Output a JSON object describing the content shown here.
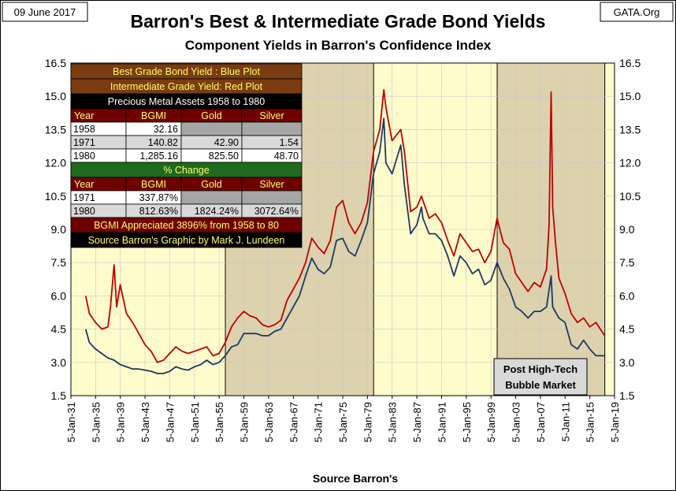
{
  "header": {
    "date": "09 June 2017",
    "brand": "GATA.Org",
    "title": "Barron's Best & Intermediate Grade Bond Yields",
    "subtitle": "Component Yields in Barron's Confidence Index",
    "source": "Source Barron's"
  },
  "colors": {
    "plot_bg": "#fffccc",
    "shade": "#ddd2ae",
    "best_grade": "#1f3864",
    "intermediate_grade": "#c00000",
    "table_brown": "#7a3c10",
    "table_darkred": "#6e0000",
    "table_green": "#1e6a1e",
    "table_black": "#000000",
    "table_gray": "#d9d9d9"
  },
  "table": {
    "legend_rows": [
      "Best Grade Bond Yield   : Blue Plot",
      "Intermediate Grade Yield: Red Plot"
    ],
    "title": "Precious Metal Assets 1958 to 1980",
    "headers": [
      "Year",
      "BGMI",
      "Gold",
      "Silver"
    ],
    "rows": [
      [
        "1958",
        "32.16",
        "",
        ""
      ],
      [
        "1971",
        "140.82",
        "42.90",
        "1.54"
      ],
      [
        "1980",
        "1,285.16",
        "825.50",
        "48.70"
      ]
    ],
    "pct_title": "% Change",
    "pct_headers": [
      "Year",
      "BGMI",
      "Gold",
      "Silver"
    ],
    "pct_rows": [
      [
        "1971",
        "337.87%",
        "",
        ""
      ],
      [
        "1980",
        "812.63%",
        "1824.24%",
        "3072.64%"
      ]
    ],
    "footer1": "BGMI Appreciated 3896% from 1958 to 80",
    "footer2": "Source Barron's  Graphic by Mark J. Lundeen"
  },
  "annotation": [
    "Post High-Tech",
    "Bubble Market"
  ],
  "chart_data": {
    "type": "line",
    "xlim": [
      "1931-01-05",
      "2019-01-05"
    ],
    "ylim": [
      1.5,
      16.5
    ],
    "y_ticks": [
      "1.5",
      "3.0",
      "4.5",
      "6.0",
      "7.5",
      "9.0",
      "10.5",
      "12.0",
      "13.5",
      "15.0",
      "16.5"
    ],
    "x_ticks": [
      "5-Jan-31",
      "5-Jan-35",
      "5-Jan-39",
      "5-Jan-43",
      "5-Jan-47",
      "5-Jan-51",
      "5-Jan-55",
      "5-Jan-59",
      "5-Jan-63",
      "5-Jan-67",
      "5-Jan-71",
      "5-Jan-75",
      "5-Jan-79",
      "5-Jan-83",
      "5-Jan-87",
      "5-Jan-91",
      "5-Jan-95",
      "5-Jan-99",
      "5-Jan-03",
      "5-Jan-07",
      "5-Jan-11",
      "5-Jan-15",
      "5-Jan-19"
    ],
    "shaded_periods": [
      [
        "1956-01-05",
        "1980-01-05"
      ],
      [
        "2000-01-05",
        "2017-06-09"
      ]
    ],
    "series": [
      {
        "name": "Best Grade Bond Yield",
        "x": [
          "1933-06-01",
          "1934-01-01",
          "1935-01-01",
          "1936-01-01",
          "1937-01-01",
          "1938-01-01",
          "1939-01-01",
          "1940-01-01",
          "1941-01-01",
          "1942-01-01",
          "1943-01-01",
          "1944-01-01",
          "1945-01-01",
          "1946-01-01",
          "1947-01-01",
          "1948-01-01",
          "1949-01-01",
          "1950-01-01",
          "1951-01-01",
          "1952-01-01",
          "1953-01-01",
          "1954-01-01",
          "1955-01-01",
          "1956-01-01",
          "1957-01-01",
          "1958-01-01",
          "1959-01-01",
          "1960-01-01",
          "1961-01-01",
          "1962-01-01",
          "1963-01-01",
          "1964-01-01",
          "1965-01-01",
          "1966-01-01",
          "1967-01-01",
          "1968-01-01",
          "1969-01-01",
          "1970-01-01",
          "1971-01-01",
          "1972-01-01",
          "1973-01-01",
          "1974-01-01",
          "1975-01-01",
          "1976-01-01",
          "1977-01-01",
          "1978-01-01",
          "1979-01-01",
          "1980-01-01",
          "1981-01-01",
          "1981-09-01",
          "1982-01-01",
          "1983-01-01",
          "1984-06-01",
          "1985-01-01",
          "1986-01-01",
          "1987-01-01",
          "1987-10-01",
          "1988-01-01",
          "1989-01-01",
          "1990-01-01",
          "1991-01-01",
          "1992-01-01",
          "1993-01-01",
          "1994-01-01",
          "1995-01-01",
          "1996-01-01",
          "1997-01-01",
          "1998-01-01",
          "1999-01-01",
          "2000-01-01",
          "2001-01-01",
          "2002-01-01",
          "2003-01-01",
          "2004-01-01",
          "2005-01-01",
          "2006-01-01",
          "2007-01-01",
          "2008-01-01",
          "2008-10-01",
          "2009-01-01",
          "2010-01-01",
          "2011-01-01",
          "2012-01-01",
          "2013-01-01",
          "2014-01-01",
          "2015-01-01",
          "2016-01-01",
          "2017-06-01"
        ],
        "y": [
          4.5,
          3.9,
          3.6,
          3.4,
          3.2,
          3.1,
          2.9,
          2.8,
          2.7,
          2.7,
          2.65,
          2.6,
          2.5,
          2.5,
          2.6,
          2.8,
          2.7,
          2.65,
          2.8,
          2.9,
          3.1,
          2.9,
          3.0,
          3.3,
          3.7,
          3.8,
          4.3,
          4.3,
          4.3,
          4.2,
          4.2,
          4.4,
          4.5,
          5.0,
          5.5,
          6.0,
          6.9,
          7.7,
          7.2,
          7.0,
          7.3,
          8.5,
          8.6,
          8.0,
          7.8,
          8.5,
          9.3,
          11.5,
          12.5,
          14.0,
          12.0,
          11.5,
          12.8,
          11.0,
          8.8,
          9.2,
          10.0,
          9.5,
          8.8,
          8.8,
          8.5,
          7.8,
          6.9,
          7.8,
          7.5,
          7.0,
          7.2,
          6.5,
          6.7,
          7.5,
          6.8,
          6.3,
          5.5,
          5.3,
          5.0,
          5.3,
          5.3,
          5.5,
          6.9,
          5.5,
          5.0,
          4.8,
          3.8,
          3.6,
          4.0,
          3.6,
          3.3,
          3.3
        ]
      },
      {
        "name": "Intermediate Grade Yield",
        "x": [
          "1933-06-01",
          "1934-01-01",
          "1935-01-01",
          "1936-01-01",
          "1937-01-01",
          "1937-06-01",
          "1938-01-01",
          "1938-06-01",
          "1939-01-01",
          "1940-01-01",
          "1941-01-01",
          "1942-01-01",
          "1943-01-01",
          "1944-01-01",
          "1945-01-01",
          "1946-01-01",
          "1947-01-01",
          "1948-01-01",
          "1949-01-01",
          "1950-01-01",
          "1951-01-01",
          "1952-01-01",
          "1953-01-01",
          "1954-01-01",
          "1955-01-01",
          "1956-01-01",
          "1957-01-01",
          "1958-01-01",
          "1959-01-01",
          "1960-01-01",
          "1961-01-01",
          "1962-01-01",
          "1963-01-01",
          "1964-01-01",
          "1965-01-01",
          "1966-01-01",
          "1967-01-01",
          "1968-01-01",
          "1969-01-01",
          "1970-01-01",
          "1971-01-01",
          "1972-01-01",
          "1973-01-01",
          "1974-01-01",
          "1975-01-01",
          "1976-01-01",
          "1977-01-01",
          "1978-01-01",
          "1979-01-01",
          "1980-01-01",
          "1981-01-01",
          "1981-09-01",
          "1982-01-01",
          "1983-01-01",
          "1984-06-01",
          "1985-01-01",
          "1986-01-01",
          "1987-01-01",
          "1987-10-01",
          "1988-01-01",
          "1989-01-01",
          "1990-01-01",
          "1991-01-01",
          "1992-01-01",
          "1993-01-01",
          "1994-01-01",
          "1995-01-01",
          "1996-01-01",
          "1997-01-01",
          "1998-01-01",
          "1999-01-01",
          "2000-01-01",
          "2001-01-01",
          "2002-01-01",
          "2003-01-01",
          "2004-01-01",
          "2005-01-01",
          "2006-01-01",
          "2007-01-01",
          "2008-01-01",
          "2008-06-01",
          "2008-10-01",
          "2009-01-01",
          "2009-06-01",
          "2010-01-01",
          "2011-01-01",
          "2012-01-01",
          "2013-01-01",
          "2014-01-01",
          "2015-01-01",
          "2016-01-01",
          "2017-06-01"
        ],
        "y": [
          6.0,
          5.2,
          4.8,
          4.5,
          4.6,
          5.5,
          7.4,
          5.5,
          6.5,
          5.2,
          4.8,
          4.3,
          3.8,
          3.5,
          3.0,
          3.1,
          3.4,
          3.7,
          3.5,
          3.4,
          3.5,
          3.6,
          3.7,
          3.3,
          3.4,
          3.9,
          4.6,
          5.0,
          5.3,
          5.1,
          5.0,
          4.7,
          4.6,
          4.7,
          4.9,
          5.8,
          6.3,
          6.8,
          7.5,
          8.6,
          8.2,
          7.9,
          8.5,
          10.0,
          10.3,
          9.3,
          8.8,
          9.3,
          10.2,
          12.5,
          13.5,
          15.3,
          14.5,
          13.0,
          13.5,
          12.5,
          9.8,
          10.0,
          10.5,
          10.3,
          9.5,
          9.7,
          9.3,
          8.5,
          7.8,
          8.8,
          8.4,
          8.0,
          8.1,
          7.5,
          8.0,
          9.5,
          8.4,
          8.1,
          7.0,
          6.6,
          6.2,
          6.6,
          6.4,
          7.2,
          9.2,
          15.2,
          10.0,
          8.5,
          6.8,
          6.1,
          5.2,
          4.8,
          5.0,
          4.6,
          4.8,
          4.2
        ]
      }
    ]
  }
}
